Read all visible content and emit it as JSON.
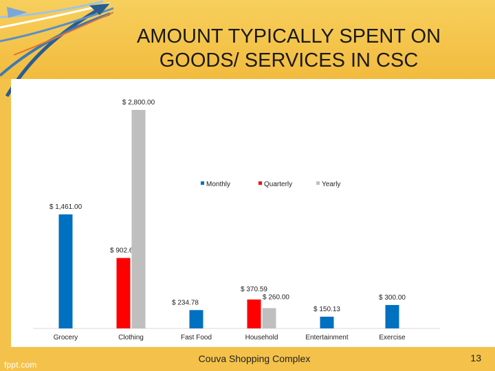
{
  "slide": {
    "title_line1": "AMOUNT TYPICALLY SPENT ON",
    "title_line2": "GOODS/ SERVICES IN CSC",
    "footer": "Couva Shopping Complex",
    "page_number": "13",
    "brand": "fppt.com"
  },
  "colors": {
    "background": "#f4c24a",
    "panel": "#ffffff",
    "monthly": "#0070c0",
    "quarterly": "#ff0000",
    "yearly": "#bfbfbf"
  },
  "chart_data": {
    "type": "bar",
    "categories": [
      "Grocery",
      "Clothing",
      "Fast Food",
      "Household",
      "Entertainment",
      "Exercise"
    ],
    "series": [
      {
        "name": "Monthly",
        "values": [
          1461.0,
          null,
          234.78,
          null,
          150.13,
          300.0
        ]
      },
      {
        "name": "Quarterly",
        "values": [
          null,
          902.69,
          null,
          370.59,
          null,
          null
        ]
      },
      {
        "name": "Yearly",
        "values": [
          null,
          2800.0,
          null,
          260.0,
          null,
          null
        ]
      }
    ],
    "data_labels": [
      {
        "category": "Grocery",
        "series": "Monthly",
        "text": "$ 1,461.00"
      },
      {
        "category": "Clothing",
        "series": "Quarterly",
        "text": "$ 902.69"
      },
      {
        "category": "Clothing",
        "series": "Yearly",
        "text": "$ 2,800.00"
      },
      {
        "category": "Fast Food",
        "series": "Monthly",
        "text": "$ 234.78"
      },
      {
        "category": "Household",
        "series": "Quarterly",
        "text": "$ 370.59"
      },
      {
        "category": "Household",
        "series": "Yearly",
        "text": "$ 260.00"
      },
      {
        "category": "Entertainment",
        "series": "Monthly",
        "text": "$ 150.13"
      },
      {
        "category": "Exercise",
        "series": "Monthly",
        "text": "$ 300.00"
      }
    ],
    "ylim": [
      0,
      2800
    ],
    "grid": false,
    "legend_position": "top-right"
  }
}
